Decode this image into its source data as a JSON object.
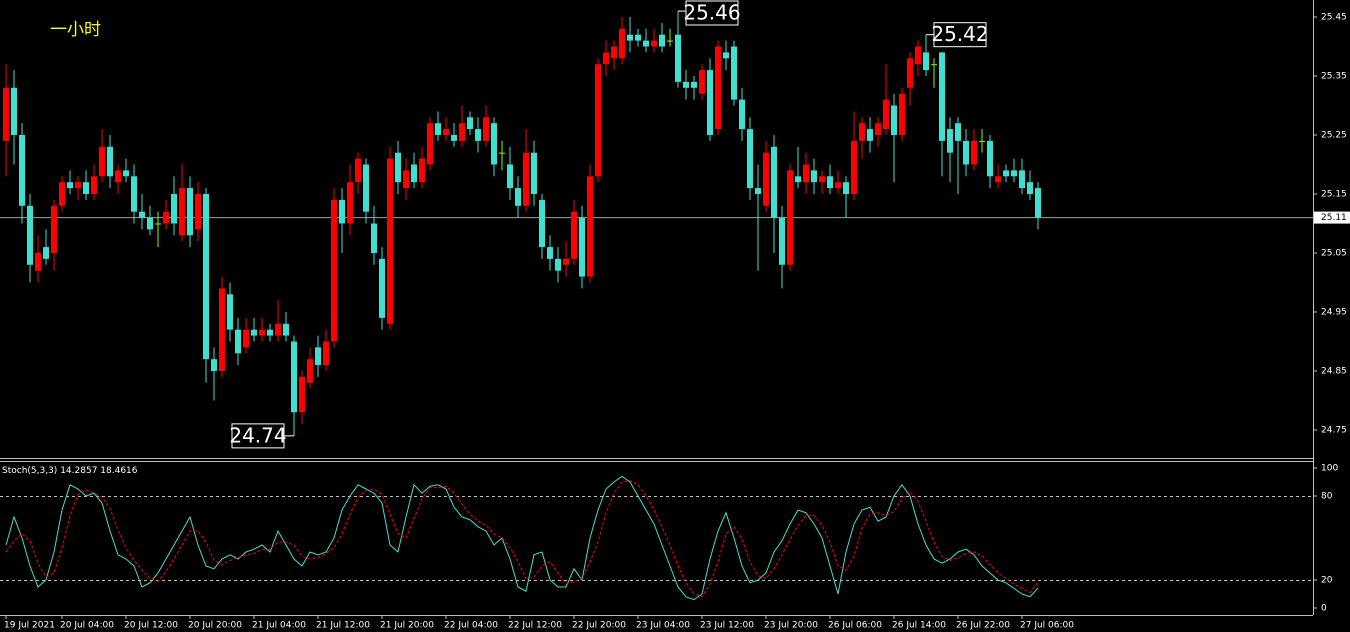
{
  "chart_data": [
    {
      "type": "candlestick",
      "title": "一小时",
      "title_color": "#ffff00",
      "up_color": "#ff0000",
      "down_color": "#40e0d0",
      "doji_color": "#80ff00",
      "ylim": [
        24.7025,
        25.4788
      ],
      "yticks": [
        25.45,
        25.35,
        25.25,
        25.15,
        25.05,
        24.95,
        24.85,
        24.75
      ],
      "current_price": 25.11,
      "extreme_labels": [
        25.46,
        24.74,
        25.42
      ],
      "categories": [
        "19 Jul 2021",
        null,
        null,
        null,
        null,
        null,
        null,
        "20 Jul 04:00",
        null,
        null,
        null,
        null,
        null,
        null,
        null,
        "20 Jul 12:00",
        null,
        null,
        null,
        null,
        null,
        null,
        null,
        "20 Jul 20:00",
        null,
        null,
        null,
        null,
        null,
        null,
        null,
        "21 Jul 04:00",
        null,
        null,
        null,
        null,
        null,
        null,
        null,
        "21 Jul 12:00",
        null,
        null,
        null,
        null,
        null,
        null,
        null,
        "21 Jul 20:00",
        null,
        null,
        null,
        null,
        null,
        null,
        null,
        "22 Jul 04:00",
        null,
        null,
        null,
        null,
        null,
        null,
        null,
        "22 Jul 12:00",
        null,
        null,
        null,
        null,
        null,
        null,
        null,
        "22 Jul 20:00",
        null,
        null,
        null,
        null,
        null,
        null,
        null,
        "23 Jul 04:00",
        null,
        null,
        null,
        null,
        null,
        null,
        null,
        "23 Jul 12:00",
        null,
        null,
        null,
        null,
        null,
        null,
        null,
        "23 Jul 20:00",
        null,
        null,
        null,
        null,
        null,
        null,
        null,
        "26 Jul 06:00",
        null,
        null,
        null,
        null,
        null,
        null,
        null,
        "26 Jul 14:00",
        null,
        null,
        null,
        null,
        null,
        null,
        null,
        "26 Jul 22:00",
        null,
        null,
        null,
        null,
        null,
        null,
        null,
        "27 Jul 06:00",
        null,
        null
      ],
      "ohlc": [
        [
          25.24,
          25.37,
          25.18,
          25.33
        ],
        [
          25.33,
          25.36,
          25.2,
          25.25
        ],
        [
          25.25,
          25.27,
          25.1,
          25.13
        ],
        [
          25.13,
          25.15,
          25.0,
          25.03
        ],
        [
          25.02,
          25.08,
          25.0,
          25.05
        ],
        [
          25.06,
          25.09,
          25.03,
          25.04
        ],
        [
          25.05,
          25.14,
          25.02,
          25.13
        ],
        [
          25.13,
          25.18,
          25.12,
          25.17
        ],
        [
          25.17,
          25.19,
          25.15,
          25.16
        ],
        [
          25.16,
          25.18,
          25.14,
          25.17
        ],
        [
          25.17,
          25.19,
          25.14,
          25.15
        ],
        [
          25.15,
          25.2,
          25.14,
          25.18
        ],
        [
          25.18,
          25.26,
          25.17,
          25.23
        ],
        [
          25.23,
          25.25,
          25.16,
          25.18
        ],
        [
          25.17,
          25.2,
          25.15,
          25.19
        ],
        [
          25.19,
          25.21,
          25.17,
          25.18
        ],
        [
          25.18,
          25.2,
          25.1,
          25.12
        ],
        [
          25.12,
          25.15,
          25.09,
          25.11
        ],
        [
          25.11,
          25.13,
          25.08,
          25.09
        ],
        [
          25.1,
          25.12,
          25.06,
          25.1
        ],
        [
          25.1,
          25.14,
          25.09,
          25.12
        ],
        [
          25.15,
          25.18,
          25.08,
          25.1
        ],
        [
          25.08,
          25.2,
          25.07,
          25.16
        ],
        [
          25.16,
          25.18,
          25.06,
          25.08
        ],
        [
          25.09,
          25.17,
          25.07,
          25.15
        ],
        [
          25.15,
          25.16,
          24.83,
          24.87
        ],
        [
          24.87,
          24.89,
          24.8,
          24.85
        ],
        [
          24.85,
          25.01,
          24.84,
          24.99
        ],
        [
          24.98,
          25.0,
          24.9,
          24.92
        ],
        [
          24.92,
          24.94,
          24.86,
          24.88
        ],
        [
          24.89,
          24.94,
          24.88,
          24.92
        ],
        [
          24.92,
          24.94,
          24.9,
          24.91
        ],
        [
          24.91,
          24.94,
          24.9,
          24.92
        ],
        [
          24.92,
          24.93,
          24.9,
          24.91
        ],
        [
          24.91,
          24.97,
          24.9,
          24.93
        ],
        [
          24.93,
          24.95,
          24.9,
          24.91
        ],
        [
          24.9,
          24.91,
          24.74,
          24.78
        ],
        [
          24.78,
          24.85,
          24.76,
          24.84
        ],
        [
          24.83,
          24.89,
          24.82,
          24.87
        ],
        [
          24.89,
          24.91,
          24.84,
          24.86
        ],
        [
          24.86,
          24.92,
          24.85,
          24.9
        ],
        [
          24.9,
          25.16,
          24.89,
          25.14
        ],
        [
          25.14,
          25.16,
          25.05,
          25.1
        ],
        [
          25.1,
          25.2,
          25.08,
          25.17
        ],
        [
          25.17,
          25.22,
          25.15,
          25.21
        ],
        [
          25.2,
          25.21,
          25.1,
          25.12
        ],
        [
          25.1,
          25.13,
          25.03,
          25.05
        ],
        [
          25.04,
          25.06,
          24.92,
          24.94
        ],
        [
          24.93,
          25.23,
          24.92,
          25.21
        ],
        [
          25.22,
          25.24,
          25.15,
          25.17
        ],
        [
          25.16,
          25.21,
          25.14,
          25.19
        ],
        [
          25.2,
          25.22,
          25.16,
          25.17
        ],
        [
          25.17,
          25.23,
          25.16,
          25.21
        ],
        [
          25.2,
          25.28,
          25.19,
          25.27
        ],
        [
          25.27,
          25.29,
          25.24,
          25.25
        ],
        [
          25.25,
          25.28,
          25.24,
          25.26
        ],
        [
          25.25,
          25.27,
          25.23,
          25.24
        ],
        [
          25.24,
          25.3,
          25.23,
          25.27
        ],
        [
          25.28,
          25.29,
          25.25,
          25.26
        ],
        [
          25.26,
          25.28,
          25.22,
          25.24
        ],
        [
          25.24,
          25.3,
          25.23,
          25.28
        ],
        [
          25.27,
          25.28,
          25.18,
          25.2
        ],
        [
          25.22,
          25.24,
          25.19,
          25.22
        ],
        [
          25.2,
          25.23,
          25.14,
          25.16
        ],
        [
          25.16,
          25.18,
          25.11,
          25.13
        ],
        [
          25.13,
          25.26,
          25.12,
          25.22
        ],
        [
          25.22,
          25.24,
          25.13,
          25.15
        ],
        [
          25.14,
          25.15,
          25.04,
          25.06
        ],
        [
          25.06,
          25.08,
          25.02,
          25.04
        ],
        [
          25.04,
          25.06,
          25.0,
          25.02
        ],
        [
          25.03,
          25.07,
          25.01,
          25.04
        ],
        [
          25.04,
          25.14,
          25.03,
          25.12
        ],
        [
          25.11,
          25.13,
          24.99,
          25.01
        ],
        [
          25.01,
          25.2,
          25.0,
          25.18
        ],
        [
          25.18,
          25.38,
          25.17,
          25.37
        ],
        [
          25.37,
          25.41,
          25.35,
          25.39
        ],
        [
          25.38,
          25.41,
          25.36,
          25.4
        ],
        [
          25.38,
          25.45,
          25.37,
          25.43
        ],
        [
          25.42,
          25.45,
          25.39,
          25.41
        ],
        [
          25.42,
          25.43,
          25.4,
          25.41
        ],
        [
          25.41,
          25.43,
          25.39,
          25.4
        ],
        [
          25.4,
          25.43,
          25.39,
          25.41
        ],
        [
          25.42,
          25.44,
          25.39,
          25.4
        ],
        [
          25.41,
          25.43,
          25.4,
          25.41
        ],
        [
          25.42,
          25.46,
          25.33,
          25.34
        ],
        [
          25.34,
          25.36,
          25.31,
          25.33
        ],
        [
          25.34,
          25.35,
          25.31,
          25.33
        ],
        [
          25.32,
          25.37,
          25.31,
          25.36
        ],
        [
          25.36,
          25.38,
          25.24,
          25.25
        ],
        [
          25.26,
          25.41,
          25.25,
          25.4
        ],
        [
          25.39,
          25.41,
          25.36,
          25.38
        ],
        [
          25.4,
          25.41,
          25.3,
          25.31
        ],
        [
          25.31,
          25.33,
          25.24,
          25.26
        ],
        [
          25.26,
          25.28,
          25.14,
          25.16
        ],
        [
          25.16,
          25.2,
          25.02,
          25.15
        ],
        [
          25.13,
          25.24,
          25.12,
          25.22
        ],
        [
          25.23,
          25.25,
          25.05,
          25.11
        ],
        [
          25.11,
          25.13,
          24.99,
          25.03
        ],
        [
          25.03,
          25.2,
          25.02,
          25.19
        ],
        [
          25.18,
          25.23,
          25.16,
          25.17
        ],
        [
          25.17,
          25.22,
          25.15,
          25.2
        ],
        [
          25.19,
          25.21,
          25.15,
          25.17
        ],
        [
          25.17,
          25.19,
          25.15,
          25.18
        ],
        [
          25.18,
          25.2,
          25.15,
          25.16
        ],
        [
          25.16,
          25.19,
          25.15,
          25.17
        ],
        [
          25.17,
          25.18,
          25.11,
          25.15
        ],
        [
          25.15,
          25.29,
          25.14,
          25.24
        ],
        [
          25.24,
          25.28,
          25.21,
          25.27
        ],
        [
          25.26,
          25.28,
          25.22,
          25.24
        ],
        [
          25.25,
          25.28,
          25.23,
          25.27
        ],
        [
          25.26,
          25.37,
          25.25,
          25.31
        ],
        [
          25.3,
          25.32,
          25.17,
          25.25
        ],
        [
          25.25,
          25.33,
          25.24,
          25.32
        ],
        [
          25.33,
          25.39,
          25.3,
          25.38
        ],
        [
          25.37,
          25.41,
          25.35,
          25.4
        ],
        [
          25.39,
          25.42,
          25.35,
          25.36
        ],
        [
          25.37,
          25.38,
          25.33,
          25.37
        ],
        [
          25.39,
          25.39,
          25.18,
          25.24
        ],
        [
          25.26,
          25.28,
          25.17,
          25.22
        ],
        [
          25.27,
          25.28,
          25.15,
          25.24
        ],
        [
          25.24,
          25.26,
          25.18,
          25.2
        ],
        [
          25.2,
          25.26,
          25.19,
          25.24
        ],
        [
          25.24,
          25.26,
          25.22,
          25.24
        ],
        [
          25.24,
          25.25,
          25.16,
          25.18
        ],
        [
          25.17,
          25.2,
          25.16,
          25.18
        ],
        [
          25.19,
          25.2,
          25.17,
          25.18
        ],
        [
          25.19,
          25.21,
          25.17,
          25.18
        ],
        [
          25.19,
          25.21,
          25.15,
          25.16
        ],
        [
          25.17,
          25.19,
          25.14,
          25.15
        ],
        [
          25.16,
          25.17,
          25.09,
          25.11
        ]
      ]
    },
    {
      "type": "line",
      "title": "Stoch(5,3,3)",
      "ylim": [
        -5,
        104.29
      ],
      "yticks": [
        100,
        80,
        20,
        0
      ],
      "levels": [
        80,
        20
      ],
      "series": [
        {
          "color": "#40e0d0",
          "dashed": false,
          "values": [
            45,
            65,
            50,
            30,
            15,
            20,
            40,
            70,
            88,
            85,
            80,
            82,
            75,
            55,
            38,
            35,
            30,
            15,
            18,
            25,
            35,
            45,
            55,
            65,
            45,
            30,
            28,
            35,
            38,
            35,
            40,
            42,
            45,
            40,
            55,
            45,
            35,
            30,
            40,
            38,
            40,
            50,
            70,
            80,
            88,
            85,
            82,
            75,
            45,
            40,
            65,
            88,
            82,
            87,
            88,
            85,
            72,
            65,
            63,
            58,
            55,
            45,
            50,
            35,
            15,
            12,
            38,
            40,
            20,
            15,
            15,
            28,
            20,
            50,
            70,
            85,
            90,
            94,
            90,
            80,
            70,
            60,
            45,
            30,
            15,
            8,
            6,
            10,
            35,
            55,
            68,
            50,
            30,
            18,
            20,
            25,
            40,
            48,
            60,
            70,
            68,
            60,
            50,
            30,
            10,
            40,
            60,
            70,
            72,
            62,
            65,
            80,
            88,
            80,
            60,
            45,
            35,
            32,
            35,
            40,
            42,
            38,
            30,
            25,
            20,
            18,
            14,
            10,
            8,
            14.2857
          ]
        },
        {
          "color": "#ff0000",
          "dashed": true,
          "values": [
            40,
            48,
            53,
            48,
            32,
            22,
            25,
            43,
            66,
            81,
            84,
            82,
            79,
            71,
            56,
            43,
            34,
            27,
            21,
            19,
            26,
            35,
            45,
            55,
            55,
            47,
            34,
            31,
            34,
            36,
            38,
            39,
            42,
            42,
            47,
            47,
            45,
            37,
            35,
            36,
            39,
            43,
            53,
            67,
            79,
            84,
            85,
            81,
            67,
            53,
            50,
            64,
            78,
            86,
            86,
            87,
            82,
            74,
            67,
            62,
            59,
            53,
            50,
            43,
            33,
            21,
            22,
            30,
            33,
            25,
            17,
            19,
            21,
            33,
            47,
            68,
            82,
            90,
            91,
            88,
            80,
            70,
            58,
            45,
            30,
            18,
            10,
            8,
            17,
            33,
            53,
            58,
            49,
            33,
            23,
            21,
            28,
            38,
            49,
            59,
            66,
            66,
            59,
            47,
            30,
            27,
            37,
            57,
            67,
            68,
            66,
            69,
            78,
            83,
            76,
            62,
            47,
            37,
            34,
            36,
            39,
            40,
            37,
            31,
            25,
            21,
            17,
            14,
            11,
            18.4616
          ]
        }
      ]
    }
  ]
}
